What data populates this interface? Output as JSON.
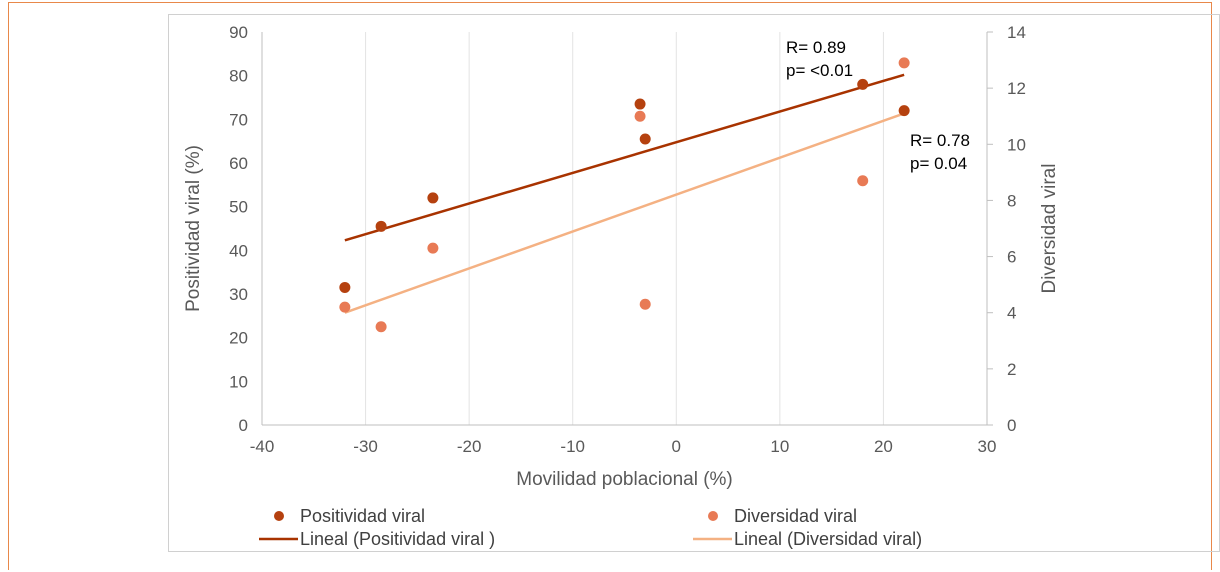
{
  "chart_data": {
    "type": "scatter",
    "xlabel": "Movilidad poblacional (%)",
    "ylabel": "Positividad viral (%)",
    "y2label": "Diversidad viral",
    "xlim": [
      -40,
      30
    ],
    "ylim": [
      0,
      90
    ],
    "y2lim": [
      0,
      14
    ],
    "xticks": [
      "-40",
      "-30",
      "-20",
      "-10",
      "0",
      "10",
      "20",
      "30"
    ],
    "yticks": [
      "0",
      "10",
      "20",
      "30",
      "40",
      "50",
      "60",
      "70",
      "80",
      "90"
    ],
    "y2ticks": [
      "0",
      "2",
      "4",
      "6",
      "8",
      "10",
      "12",
      "14"
    ],
    "grid": "vertical",
    "legend_position": "bottom",
    "series": [
      {
        "name": "Positividad viral",
        "axis": "left",
        "color": "#b5410f",
        "points": [
          {
            "x": -32,
            "y": 31.5
          },
          {
            "x": -28.5,
            "y": 45.5
          },
          {
            "x": -23.5,
            "y": 52
          },
          {
            "x": -3.5,
            "y": 73.5
          },
          {
            "x": -3,
            "y": 65.5
          },
          {
            "x": 18,
            "y": 78
          },
          {
            "x": 22,
            "y": 72
          }
        ],
        "trend": {
          "name": "Lineal (Positividad viral )",
          "color": "#a83300",
          "x": [
            -32,
            22
          ],
          "y": [
            42.3,
            80.2
          ]
        }
      },
      {
        "name": "Diversidad viral",
        "axis": "right",
        "color": "#e87a55",
        "points": [
          {
            "x": -32,
            "y": 4.2
          },
          {
            "x": -28.5,
            "y": 3.5
          },
          {
            "x": -23.5,
            "y": 6.3
          },
          {
            "x": -3.5,
            "y": 11.0
          },
          {
            "x": -3,
            "y": 4.3
          },
          {
            "x": 18,
            "y": 8.7
          },
          {
            "x": 22,
            "y": 12.9
          }
        ],
        "trend": {
          "name": "Lineal (Diversidad viral)",
          "color": "#f4b183",
          "x": [
            -32,
            22
          ],
          "y": [
            4.0,
            11.1
          ]
        }
      }
    ],
    "annotations": [
      {
        "line1": "R= 0.89",
        "line2": "p= <0.01"
      },
      {
        "line1": "R= 0.78",
        "line2": "p= 0.04"
      }
    ]
  }
}
